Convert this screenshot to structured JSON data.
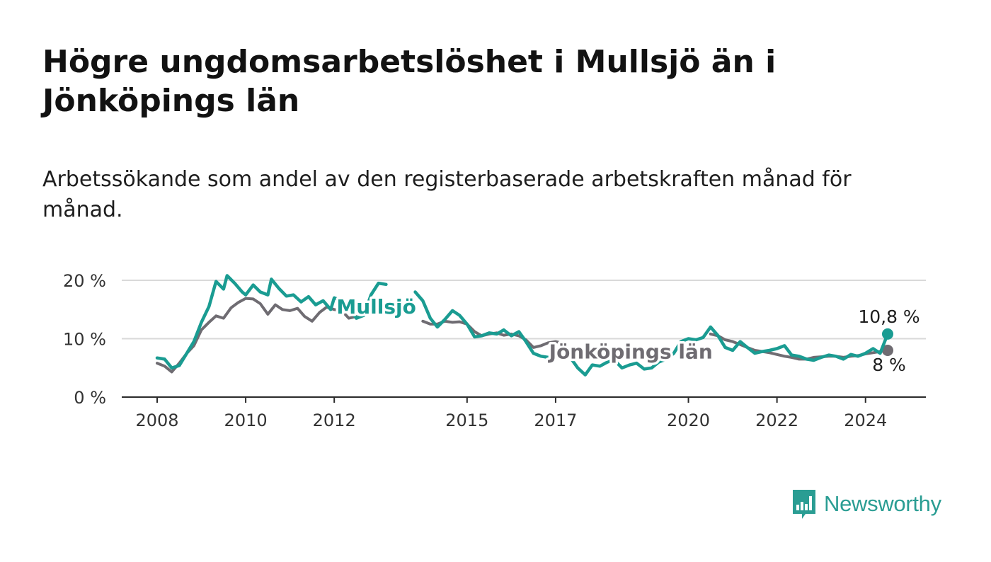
{
  "title": "Högre ungdomsarbetslöshet i Mullsjö än i Jönköpings län",
  "subtitle": "Arbetssökande som andel av den registerbaserade arbetskraften månad för månad.",
  "brand": {
    "name": "Newsworthy",
    "icon": "bar-chart-speech-bubble-icon",
    "color": "#2a9d93"
  },
  "chart_data": {
    "type": "line",
    "x_unit": "year (decimal)",
    "ylim": [
      0,
      20
    ],
    "yticks": [
      0,
      10,
      20
    ],
    "ytick_labels": [
      "0 %",
      "10 %",
      "20 %"
    ],
    "xticks": [
      2008,
      2010,
      2012,
      2015,
      2017,
      2020,
      2022,
      2024
    ],
    "xtick_labels": [
      "2008",
      "2010",
      "2012",
      "2015",
      "2017",
      "2020",
      "2022",
      "2024"
    ],
    "grid": true,
    "series": [
      {
        "name": "Jönköpings län",
        "color": "#6f6c72",
        "label_at": 2018.7,
        "end_label": "8 %",
        "points": [
          [
            2008.0,
            5.8
          ],
          [
            2008.17,
            5.3
          ],
          [
            2008.33,
            4.3
          ],
          [
            2008.5,
            5.8
          ],
          [
            2008.67,
            7.5
          ],
          [
            2008.83,
            8.8
          ],
          [
            2009.0,
            11.5
          ],
          [
            2009.17,
            12.8
          ],
          [
            2009.33,
            13.9
          ],
          [
            2009.5,
            13.5
          ],
          [
            2009.67,
            15.3
          ],
          [
            2009.83,
            16.2
          ],
          [
            2010.0,
            16.9
          ],
          [
            2010.17,
            16.8
          ],
          [
            2010.33,
            16.0
          ],
          [
            2010.5,
            14.2
          ],
          [
            2010.67,
            15.8
          ],
          [
            2010.83,
            15.0
          ],
          [
            2011.0,
            14.8
          ],
          [
            2011.17,
            15.2
          ],
          [
            2011.33,
            13.8
          ],
          [
            2011.5,
            13.0
          ],
          [
            2011.67,
            14.5
          ],
          [
            2011.83,
            15.4
          ],
          [
            2012.0,
            15.0
          ],
          [
            2012.17,
            14.8
          ],
          [
            2012.33,
            13.5
          ],
          [
            2012.5,
            13.8
          ],
          [
            2014.0,
            13.0
          ],
          [
            2014.17,
            12.5
          ],
          [
            2014.33,
            12.5
          ],
          [
            2014.5,
            13.0
          ],
          [
            2014.67,
            12.8
          ],
          [
            2014.83,
            12.9
          ],
          [
            2015.0,
            12.5
          ],
          [
            2015.17,
            11.2
          ],
          [
            2015.33,
            10.5
          ],
          [
            2015.5,
            10.8
          ],
          [
            2015.67,
            11.0
          ],
          [
            2015.83,
            10.6
          ],
          [
            2016.0,
            10.8
          ],
          [
            2016.17,
            10.5
          ],
          [
            2016.33,
            9.8
          ],
          [
            2016.5,
            8.5
          ],
          [
            2016.67,
            8.8
          ],
          [
            2016.83,
            9.3
          ],
          [
            2017.0,
            9.5
          ],
          [
            2017.17,
            9.2
          ],
          [
            2020.5,
            10.8
          ],
          [
            2020.67,
            10.5
          ],
          [
            2020.83,
            9.8
          ],
          [
            2021.0,
            9.5
          ],
          [
            2021.17,
            9.0
          ],
          [
            2021.33,
            8.5
          ],
          [
            2021.5,
            8.0
          ],
          [
            2021.67,
            7.8
          ],
          [
            2021.83,
            7.6
          ],
          [
            2022.0,
            7.3
          ],
          [
            2022.17,
            7.0
          ],
          [
            2022.33,
            6.8
          ],
          [
            2022.5,
            6.5
          ],
          [
            2022.67,
            6.5
          ],
          [
            2022.83,
            6.8
          ],
          [
            2023.0,
            6.9
          ],
          [
            2023.17,
            7.0
          ],
          [
            2023.33,
            7.0
          ],
          [
            2023.5,
            6.8
          ],
          [
            2023.67,
            7.0
          ],
          [
            2023.83,
            7.1
          ],
          [
            2024.0,
            7.4
          ],
          [
            2024.17,
            7.6
          ],
          [
            2024.33,
            7.8
          ],
          [
            2024.5,
            8.0
          ]
        ]
      },
      {
        "name": "Mullsjö",
        "color": "#1a9c92",
        "label_at": 2012.95,
        "end_label": "10,8 %",
        "points": [
          [
            2008.0,
            6.7
          ],
          [
            2008.17,
            6.5
          ],
          [
            2008.33,
            5.0
          ],
          [
            2008.5,
            5.4
          ],
          [
            2008.67,
            7.5
          ],
          [
            2008.83,
            9.5
          ],
          [
            2009.0,
            12.8
          ],
          [
            2009.17,
            15.5
          ],
          [
            2009.33,
            19.8
          ],
          [
            2009.5,
            18.5
          ],
          [
            2009.58,
            20.8
          ],
          [
            2009.75,
            19.5
          ],
          [
            2009.92,
            18.0
          ],
          [
            2010.0,
            17.5
          ],
          [
            2010.17,
            19.2
          ],
          [
            2010.33,
            18.0
          ],
          [
            2010.5,
            17.5
          ],
          [
            2010.58,
            20.2
          ],
          [
            2010.75,
            18.6
          ],
          [
            2010.92,
            17.3
          ],
          [
            2011.08,
            17.5
          ],
          [
            2011.25,
            16.3
          ],
          [
            2011.42,
            17.2
          ],
          [
            2011.58,
            15.8
          ],
          [
            2011.75,
            16.5
          ],
          [
            2011.92,
            15.0
          ],
          [
            2012.0,
            17.0
          ],
          [
            2012.17,
            16.5
          ],
          [
            2012.33,
            15.2
          ],
          [
            2012.5,
            13.5
          ],
          [
            2012.67,
            14.0
          ],
          [
            2012.83,
            17.5
          ],
          [
            2013.0,
            19.5
          ],
          [
            2013.17,
            19.3
          ],
          [
            2013.83,
            18.0
          ],
          [
            2014.0,
            16.5
          ],
          [
            2014.17,
            13.5
          ],
          [
            2014.33,
            12.0
          ],
          [
            2014.5,
            13.3
          ],
          [
            2014.67,
            14.8
          ],
          [
            2014.83,
            14.0
          ],
          [
            2015.0,
            12.5
          ],
          [
            2015.17,
            10.3
          ],
          [
            2015.33,
            10.5
          ],
          [
            2015.5,
            11.0
          ],
          [
            2015.67,
            10.8
          ],
          [
            2015.83,
            11.5
          ],
          [
            2016.0,
            10.5
          ],
          [
            2016.17,
            11.2
          ],
          [
            2016.33,
            9.5
          ],
          [
            2016.5,
            7.5
          ],
          [
            2016.67,
            7.0
          ],
          [
            2016.83,
            6.8
          ],
          [
            2017.0,
            7.2
          ],
          [
            2017.17,
            7.0
          ],
          [
            2017.33,
            6.8
          ],
          [
            2017.5,
            5.0
          ],
          [
            2017.67,
            3.8
          ],
          [
            2017.83,
            5.5
          ],
          [
            2018.0,
            5.3
          ],
          [
            2018.17,
            6.0
          ],
          [
            2018.33,
            6.3
          ],
          [
            2018.5,
            5.0
          ],
          [
            2018.67,
            5.5
          ],
          [
            2018.83,
            5.8
          ],
          [
            2019.0,
            4.8
          ],
          [
            2019.17,
            5.0
          ],
          [
            2019.33,
            6.0
          ],
          [
            2019.5,
            6.5
          ],
          [
            2019.67,
            7.5
          ],
          [
            2019.83,
            9.5
          ],
          [
            2020.0,
            10.0
          ],
          [
            2020.17,
            9.8
          ],
          [
            2020.33,
            10.2
          ],
          [
            2020.5,
            12.0
          ],
          [
            2020.67,
            10.5
          ],
          [
            2020.83,
            8.5
          ],
          [
            2021.0,
            8.0
          ],
          [
            2021.17,
            9.5
          ],
          [
            2021.33,
            8.5
          ],
          [
            2021.5,
            7.5
          ],
          [
            2021.67,
            7.8
          ],
          [
            2021.83,
            8.0
          ],
          [
            2022.0,
            8.3
          ],
          [
            2022.17,
            8.8
          ],
          [
            2022.33,
            7.2
          ],
          [
            2022.5,
            7.0
          ],
          [
            2022.67,
            6.5
          ],
          [
            2022.83,
            6.3
          ],
          [
            2023.0,
            6.8
          ],
          [
            2023.17,
            7.2
          ],
          [
            2023.33,
            7.0
          ],
          [
            2023.5,
            6.5
          ],
          [
            2023.67,
            7.3
          ],
          [
            2023.83,
            7.0
          ],
          [
            2024.0,
            7.5
          ],
          [
            2024.17,
            8.3
          ],
          [
            2024.33,
            7.5
          ],
          [
            2024.5,
            10.8
          ]
        ]
      }
    ]
  }
}
